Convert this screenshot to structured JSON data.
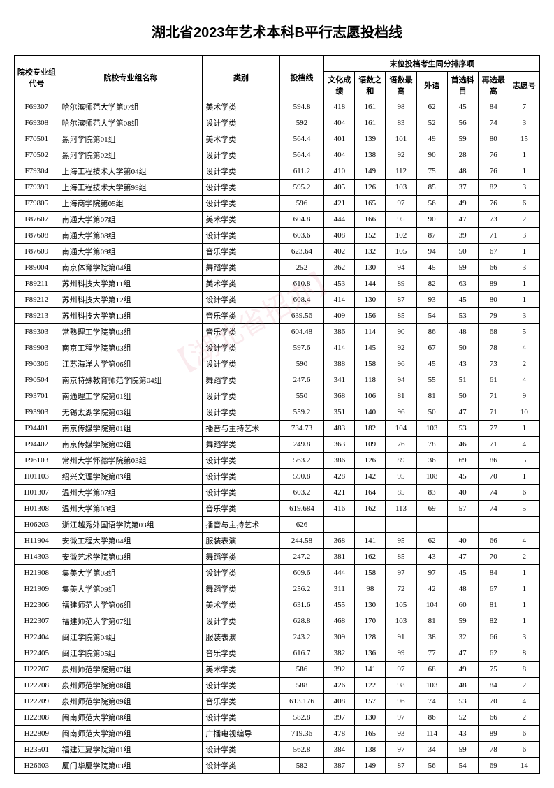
{
  "title": "湖北省2023年艺术本科B平行志愿投档线",
  "header": {
    "code": "院校专业组代号",
    "name": "院校专业组名称",
    "category": "类别",
    "score": "投档线",
    "tiebreak": "末位投档考生同分排序项",
    "sub": {
      "culture": "文化成绩",
      "sum": "语数之和",
      "max": "语数最高",
      "foreign": "外语",
      "first": "首选科目",
      "second": "再选最高",
      "wish": "志愿号"
    }
  },
  "rows": [
    {
      "code": "F69307",
      "name": "哈尔滨师范大学第07组",
      "cat": "美术学类",
      "score": "594.8",
      "c1": "418",
      "c2": "161",
      "c3": "98",
      "c4": "62",
      "c5": "45",
      "c6": "84",
      "c7": "7"
    },
    {
      "code": "F69308",
      "name": "哈尔滨师范大学第08组",
      "cat": "设计学类",
      "score": "592",
      "c1": "404",
      "c2": "161",
      "c3": "83",
      "c4": "52",
      "c5": "56",
      "c6": "74",
      "c7": "3"
    },
    {
      "code": "F70501",
      "name": "黑河学院第01组",
      "cat": "美术学类",
      "score": "564.4",
      "c1": "401",
      "c2": "139",
      "c3": "101",
      "c4": "49",
      "c5": "59",
      "c6": "80",
      "c7": "15"
    },
    {
      "code": "F70502",
      "name": "黑河学院第02组",
      "cat": "设计学类",
      "score": "564.4",
      "c1": "404",
      "c2": "138",
      "c3": "92",
      "c4": "90",
      "c5": "28",
      "c6": "76",
      "c7": "1"
    },
    {
      "code": "F79304",
      "name": "上海工程技术大学第04组",
      "cat": "设计学类",
      "score": "611.2",
      "c1": "410",
      "c2": "149",
      "c3": "112",
      "c4": "75",
      "c5": "48",
      "c6": "76",
      "c7": "1"
    },
    {
      "code": "F79399",
      "name": "上海工程技术大学第99组",
      "cat": "设计学类",
      "score": "595.2",
      "c1": "405",
      "c2": "126",
      "c3": "103",
      "c4": "85",
      "c5": "37",
      "c6": "82",
      "c7": "3"
    },
    {
      "code": "F79805",
      "name": "上海商学院第05组",
      "cat": "设计学类",
      "score": "596",
      "c1": "421",
      "c2": "165",
      "c3": "97",
      "c4": "56",
      "c5": "49",
      "c6": "76",
      "c7": "6"
    },
    {
      "code": "F87607",
      "name": "南通大学第07组",
      "cat": "美术学类",
      "score": "604.8",
      "c1": "444",
      "c2": "166",
      "c3": "95",
      "c4": "90",
      "c5": "47",
      "c6": "73",
      "c7": "2"
    },
    {
      "code": "F87608",
      "name": "南通大学第08组",
      "cat": "设计学类",
      "score": "603.6",
      "c1": "408",
      "c2": "152",
      "c3": "102",
      "c4": "87",
      "c5": "39",
      "c6": "71",
      "c7": "3"
    },
    {
      "code": "F87609",
      "name": "南通大学第09组",
      "cat": "音乐学类",
      "score": "623.64",
      "c1": "402",
      "c2": "132",
      "c3": "105",
      "c4": "94",
      "c5": "50",
      "c6": "67",
      "c7": "1"
    },
    {
      "code": "F89004",
      "name": "南京体育学院第04组",
      "cat": "舞蹈学类",
      "score": "252",
      "c1": "362",
      "c2": "130",
      "c3": "94",
      "c4": "45",
      "c5": "59",
      "c6": "66",
      "c7": "3"
    },
    {
      "code": "F89211",
      "name": "苏州科技大学第11组",
      "cat": "美术学类",
      "score": "610.8",
      "c1": "453",
      "c2": "144",
      "c3": "89",
      "c4": "82",
      "c5": "63",
      "c6": "89",
      "c7": "1"
    },
    {
      "code": "F89212",
      "name": "苏州科技大学第12组",
      "cat": "设计学类",
      "score": "608.4",
      "c1": "414",
      "c2": "130",
      "c3": "87",
      "c4": "93",
      "c5": "45",
      "c6": "80",
      "c7": "1"
    },
    {
      "code": "F89213",
      "name": "苏州科技大学第13组",
      "cat": "音乐学类",
      "score": "639.56",
      "c1": "409",
      "c2": "156",
      "c3": "85",
      "c4": "54",
      "c5": "53",
      "c6": "79",
      "c7": "3"
    },
    {
      "code": "F89303",
      "name": "常熟理工学院第03组",
      "cat": "音乐学类",
      "score": "604.48",
      "c1": "386",
      "c2": "114",
      "c3": "90",
      "c4": "86",
      "c5": "48",
      "c6": "68",
      "c7": "5"
    },
    {
      "code": "F89903",
      "name": "南京工程学院第03组",
      "cat": "设计学类",
      "score": "597.6",
      "c1": "414",
      "c2": "145",
      "c3": "92",
      "c4": "67",
      "c5": "50",
      "c6": "78",
      "c7": "4"
    },
    {
      "code": "F90306",
      "name": "江苏海洋大学第06组",
      "cat": "设计学类",
      "score": "590",
      "c1": "388",
      "c2": "158",
      "c3": "96",
      "c4": "45",
      "c5": "43",
      "c6": "73",
      "c7": "2"
    },
    {
      "code": "F90504",
      "name": "南京特殊教育师范学院第04组",
      "cat": "舞蹈学类",
      "score": "247.6",
      "c1": "341",
      "c2": "118",
      "c3": "94",
      "c4": "55",
      "c5": "51",
      "c6": "61",
      "c7": "4"
    },
    {
      "code": "F93701",
      "name": "南通理工学院第01组",
      "cat": "设计学类",
      "score": "550",
      "c1": "368",
      "c2": "106",
      "c3": "81",
      "c4": "81",
      "c5": "50",
      "c6": "71",
      "c7": "9"
    },
    {
      "code": "F93903",
      "name": "无锡太湖学院第03组",
      "cat": "设计学类",
      "score": "559.2",
      "c1": "351",
      "c2": "140",
      "c3": "96",
      "c4": "50",
      "c5": "47",
      "c6": "71",
      "c7": "10"
    },
    {
      "code": "F94401",
      "name": "南京传媒学院第01组",
      "cat": "播音与主持艺术",
      "score": "734.73",
      "c1": "483",
      "c2": "182",
      "c3": "104",
      "c4": "103",
      "c5": "53",
      "c6": "77",
      "c7": "1"
    },
    {
      "code": "F94402",
      "name": "南京传媒学院第02组",
      "cat": "舞蹈学类",
      "score": "249.8",
      "c1": "363",
      "c2": "109",
      "c3": "76",
      "c4": "78",
      "c5": "46",
      "c6": "71",
      "c7": "4"
    },
    {
      "code": "F96103",
      "name": "常州大学怀德学院第03组",
      "cat": "设计学类",
      "score": "563.2",
      "c1": "386",
      "c2": "126",
      "c3": "89",
      "c4": "36",
      "c5": "69",
      "c6": "86",
      "c7": "5"
    },
    {
      "code": "H01103",
      "name": "绍兴文理学院第03组",
      "cat": "设计学类",
      "score": "590.8",
      "c1": "428",
      "c2": "142",
      "c3": "95",
      "c4": "108",
      "c5": "45",
      "c6": "70",
      "c7": "1"
    },
    {
      "code": "H01307",
      "name": "温州大学第07组",
      "cat": "设计学类",
      "score": "603.2",
      "c1": "421",
      "c2": "164",
      "c3": "85",
      "c4": "83",
      "c5": "40",
      "c6": "74",
      "c7": "6"
    },
    {
      "code": "H01308",
      "name": "温州大学第08组",
      "cat": "音乐学类",
      "score": "619.684",
      "c1": "416",
      "c2": "162",
      "c3": "113",
      "c4": "69",
      "c5": "57",
      "c6": "74",
      "c7": "5"
    },
    {
      "code": "H06203",
      "name": "浙江越秀外国语学院第03组",
      "cat": "播音与主持艺术",
      "score": "626",
      "c1": "",
      "c2": "",
      "c3": "",
      "c4": "",
      "c5": "",
      "c6": "",
      "c7": ""
    },
    {
      "code": "H11904",
      "name": "安徽工程大学第04组",
      "cat": "服装表演",
      "score": "244.58",
      "c1": "368",
      "c2": "141",
      "c3": "95",
      "c4": "62",
      "c5": "40",
      "c6": "66",
      "c7": "4"
    },
    {
      "code": "H14303",
      "name": "安徽艺术学院第03组",
      "cat": "舞蹈学类",
      "score": "247.2",
      "c1": "381",
      "c2": "162",
      "c3": "85",
      "c4": "43",
      "c5": "47",
      "c6": "70",
      "c7": "2"
    },
    {
      "code": "H21908",
      "name": "集美大学第08组",
      "cat": "设计学类",
      "score": "609.6",
      "c1": "444",
      "c2": "158",
      "c3": "97",
      "c4": "97",
      "c5": "45",
      "c6": "84",
      "c7": "1"
    },
    {
      "code": "H21909",
      "name": "集美大学第09组",
      "cat": "舞蹈学类",
      "score": "256.2",
      "c1": "311",
      "c2": "98",
      "c3": "72",
      "c4": "42",
      "c5": "48",
      "c6": "67",
      "c7": "1"
    },
    {
      "code": "H22306",
      "name": "福建师范大学第06组",
      "cat": "美术学类",
      "score": "631.6",
      "c1": "455",
      "c2": "130",
      "c3": "105",
      "c4": "104",
      "c5": "60",
      "c6": "81",
      "c7": "1"
    },
    {
      "code": "H22307",
      "name": "福建师范大学第07组",
      "cat": "设计学类",
      "score": "628.8",
      "c1": "468",
      "c2": "170",
      "c3": "103",
      "c4": "81",
      "c5": "59",
      "c6": "82",
      "c7": "1"
    },
    {
      "code": "H22404",
      "name": "闽江学院第04组",
      "cat": "服装表演",
      "score": "243.2",
      "c1": "309",
      "c2": "128",
      "c3": "91",
      "c4": "38",
      "c5": "32",
      "c6": "66",
      "c7": "3"
    },
    {
      "code": "H22405",
      "name": "闽江学院第05组",
      "cat": "音乐学类",
      "score": "616.7",
      "c1": "382",
      "c2": "136",
      "c3": "99",
      "c4": "77",
      "c5": "47",
      "c6": "62",
      "c7": "8"
    },
    {
      "code": "H22707",
      "name": "泉州师范学院第07组",
      "cat": "美术学类",
      "score": "586",
      "c1": "392",
      "c2": "141",
      "c3": "97",
      "c4": "68",
      "c5": "49",
      "c6": "75",
      "c7": "8"
    },
    {
      "code": "H22708",
      "name": "泉州师范学院第08组",
      "cat": "设计学类",
      "score": "588",
      "c1": "426",
      "c2": "122",
      "c3": "98",
      "c4": "103",
      "c5": "48",
      "c6": "84",
      "c7": "2"
    },
    {
      "code": "H22709",
      "name": "泉州师范学院第09组",
      "cat": "音乐学类",
      "score": "613.176",
      "c1": "408",
      "c2": "157",
      "c3": "96",
      "c4": "74",
      "c5": "53",
      "c6": "70",
      "c7": "4"
    },
    {
      "code": "H22808",
      "name": "闽南师范大学第08组",
      "cat": "设计学类",
      "score": "582.8",
      "c1": "397",
      "c2": "130",
      "c3": "97",
      "c4": "86",
      "c5": "52",
      "c6": "66",
      "c7": "2"
    },
    {
      "code": "H22809",
      "name": "闽南师范大学第09组",
      "cat": "广播电视编导",
      "score": "719.36",
      "c1": "478",
      "c2": "165",
      "c3": "93",
      "c4": "114",
      "c5": "43",
      "c6": "89",
      "c7": "6"
    },
    {
      "code": "H23501",
      "name": "福建江夏学院第01组",
      "cat": "设计学类",
      "score": "562.8",
      "c1": "384",
      "c2": "138",
      "c3": "97",
      "c4": "34",
      "c5": "59",
      "c6": "78",
      "c7": "6"
    },
    {
      "code": "H26603",
      "name": "厦门华厦学院第03组",
      "cat": "设计学类",
      "score": "582",
      "c1": "387",
      "c2": "149",
      "c3": "87",
      "c4": "56",
      "c5": "54",
      "c6": "69",
      "c7": "14"
    }
  ],
  "watermark": "【湖北省招办】"
}
